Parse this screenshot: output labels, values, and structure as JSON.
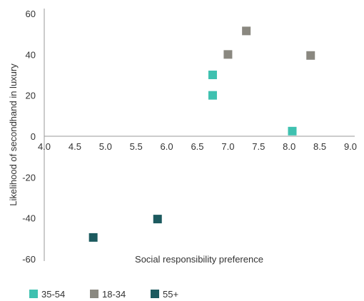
{
  "chart_data": {
    "type": "scatter",
    "xlabel": "Social responsibility preference",
    "ylabel": "Likelihood of secondhand in luxury",
    "xlim": [
      4.0,
      9.0
    ],
    "ylim": [
      -60,
      60
    ],
    "x_ticks": [
      "4.0",
      "4.5",
      "5.0",
      "5.5",
      "6.0",
      "6.5",
      "7.0",
      "7.5",
      "8.0",
      "8.5",
      "9.0"
    ],
    "y_ticks": [
      "60",
      "40",
      "20",
      "0",
      "-20",
      "-40",
      "-60"
    ],
    "grid": false,
    "legend_position": "bottom-left",
    "series": [
      {
        "name": "35-54",
        "color": "#3fc1b0",
        "points": [
          [
            6.75,
            30
          ],
          [
            6.75,
            20
          ],
          [
            8.05,
            2.5
          ]
        ]
      },
      {
        "name": "18-34",
        "color": "#8a8880",
        "points": [
          [
            7.3,
            51.5
          ],
          [
            7.0,
            40
          ],
          [
            8.35,
            39.5
          ]
        ]
      },
      {
        "name": "55+",
        "color": "#1c5a5f",
        "points": [
          [
            4.8,
            -49.5
          ],
          [
            5.85,
            -40.5
          ]
        ]
      }
    ]
  }
}
